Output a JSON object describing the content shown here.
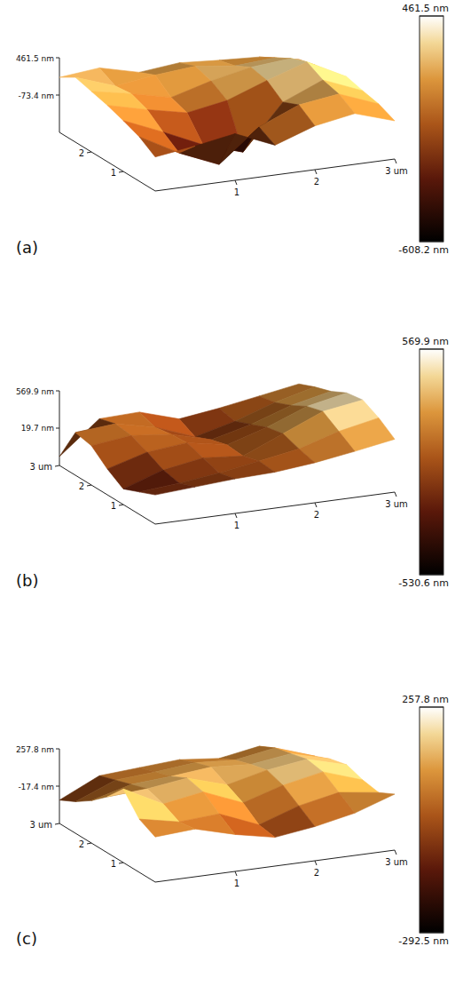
{
  "chart_data": [
    {
      "type": "surface3d",
      "label": "(a)",
      "xlim": [
        0,
        3
      ],
      "ylim": [
        0,
        3
      ],
      "xticks": [
        1,
        2,
        {
          "value": 3,
          "label": "3 um"
        }
      ],
      "yticks": [
        1,
        2
      ],
      "zlim": [
        -608.2,
        461.5
      ],
      "zticks": [
        {
          "value": 461.5,
          "label": "461.5 nm"
        },
        {
          "value": -73.4,
          "label": "-73.4 nm"
        }
      ],
      "colorbar_range": [
        -608.2,
        461.5
      ],
      "colorbar_ticks": [
        {
          "value": 461.5,
          "label": "461.5 nm"
        },
        {
          "value": -608.2,
          "label": "-608.2 nm"
        }
      ],
      "heights": [
        [
          -120,
          -40,
          60,
          -180,
          20,
          120,
          -60
        ],
        [
          30,
          -280,
          -520,
          -60,
          180,
          260,
          40
        ],
        [
          120,
          -120,
          -380,
          -560,
          80,
          320,
          90
        ],
        [
          200,
          60,
          -60,
          40,
          250,
          440,
          150
        ],
        [
          260,
          150,
          20,
          180,
          300,
          350,
          80
        ],
        [
          320,
          120,
          200,
          250,
          180,
          220,
          40
        ],
        [
          180,
          240,
          100,
          160,
          120,
          90,
          -20
        ]
      ]
    },
    {
      "type": "surface3d",
      "label": "(b)",
      "xlim": [
        0,
        3
      ],
      "ylim": [
        0,
        3
      ],
      "xticks": [
        1,
        2,
        {
          "value": 3,
          "label": "3 um"
        }
      ],
      "yticks": [
        1,
        2,
        {
          "value": 3,
          "label": "3 um"
        }
      ],
      "zlim": [
        -530.6,
        569.9
      ],
      "zticks": [
        {
          "value": 569.9,
          "label": "569.9 nm"
        },
        {
          "value": 19.7,
          "label": "19.7 nm"
        }
      ],
      "colorbar_range": [
        -530.6,
        569.9
      ],
      "colorbar_ticks": [
        {
          "value": 569.9,
          "label": "569.9 nm"
        },
        {
          "value": -530.6,
          "label": "-530.6 nm"
        }
      ],
      "heights": [
        [
          -100,
          -60,
          -20,
          0,
          60,
          150,
          250
        ],
        [
          -200,
          -150,
          -80,
          20,
          120,
          300,
          420
        ],
        [
          -300,
          -100,
          0,
          -50,
          200,
          450,
          540
        ],
        [
          -150,
          20,
          80,
          -30,
          150,
          380,
          500
        ],
        [
          50,
          120,
          60,
          -100,
          50,
          250,
          380
        ],
        [
          100,
          150,
          20,
          -200,
          -50,
          150,
          300
        ],
        [
          -400,
          80,
          100,
          -80,
          0,
          100,
          200
        ]
      ]
    },
    {
      "type": "surface3d",
      "label": "(c)",
      "xlim": [
        0,
        3
      ],
      "ylim": [
        0,
        3
      ],
      "xticks": [
        1,
        2,
        {
          "value": 3,
          "label": "3 um"
        }
      ],
      "yticks": [
        1,
        2,
        {
          "value": 3,
          "label": "3 um"
        }
      ],
      "zlim": [
        -292.5,
        257.8
      ],
      "zticks": [
        {
          "value": 257.8,
          "label": "257.8 nm"
        },
        {
          "value": -17.4,
          "label": "-17.4 nm"
        }
      ],
      "colorbar_range": [
        -292.5,
        257.8
      ],
      "colorbar_ticks": [
        {
          "value": 257.8,
          "label": "257.8 nm"
        },
        {
          "value": -292.5,
          "label": "-292.5 nm"
        }
      ],
      "heights": [
        [
          40,
          60,
          -20,
          -80,
          -40,
          20,
          120
        ],
        [
          100,
          40,
          60,
          -60,
          40,
          100,
          60
        ],
        [
          250,
          100,
          150,
          30,
          120,
          180,
          80
        ],
        [
          120,
          140,
          180,
          90,
          160,
          200,
          120
        ],
        [
          20,
          100,
          120,
          150,
          130,
          170,
          90
        ],
        [
          -60,
          60,
          80,
          110,
          90,
          140,
          40
        ],
        [
          -120,
          20,
          40,
          60,
          30,
          80,
          -20
        ]
      ]
    }
  ]
}
